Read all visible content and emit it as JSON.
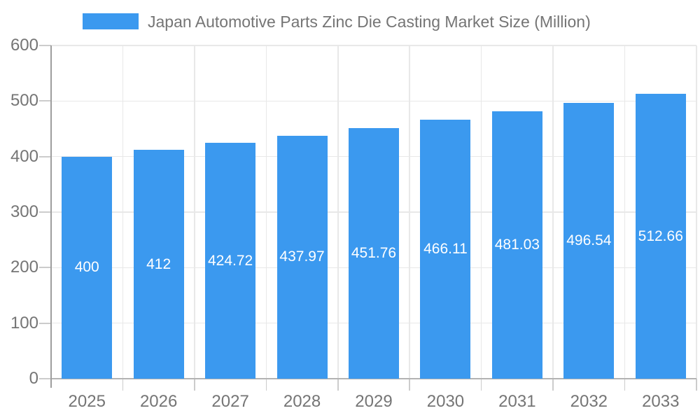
{
  "legend": {
    "label": "Japan Automotive Parts Zinc Die Casting Market Size (Million)"
  },
  "colors": {
    "bar": "#3B99EF",
    "grid_line": "#E8E8E8",
    "axis_line": "#9E9E9E",
    "tick": "#CCCCCC",
    "baseline": "#B3B3B3",
    "axis_text": "#757575",
    "legend_text": "#757575",
    "value_label_text": "#FFFFFF",
    "background": "#FFFFFF"
  },
  "chart_data": {
    "type": "bar",
    "title": "Japan Automotive Parts Zinc Die Casting Market Size (Million)",
    "series_name": "Japan Automotive Parts Zinc Die Casting Market Size (Million)",
    "categories": [
      "2025",
      "2026",
      "2027",
      "2028",
      "2029",
      "2030",
      "2031",
      "2032",
      "2033"
    ],
    "values": [
      400,
      412,
      424.72,
      437.97,
      451.76,
      466.11,
      481.03,
      496.54,
      512.66
    ],
    "value_labels": [
      "400",
      "412",
      "424.72",
      "437.97",
      "451.76",
      "466.11",
      "481.03",
      "496.54",
      "512.66"
    ],
    "xlabel": "",
    "ylabel": "",
    "ylim": [
      0,
      600
    ],
    "yticks": [
      0,
      100,
      200,
      300,
      400,
      500,
      600
    ],
    "grid": true,
    "legend_position": "top"
  }
}
